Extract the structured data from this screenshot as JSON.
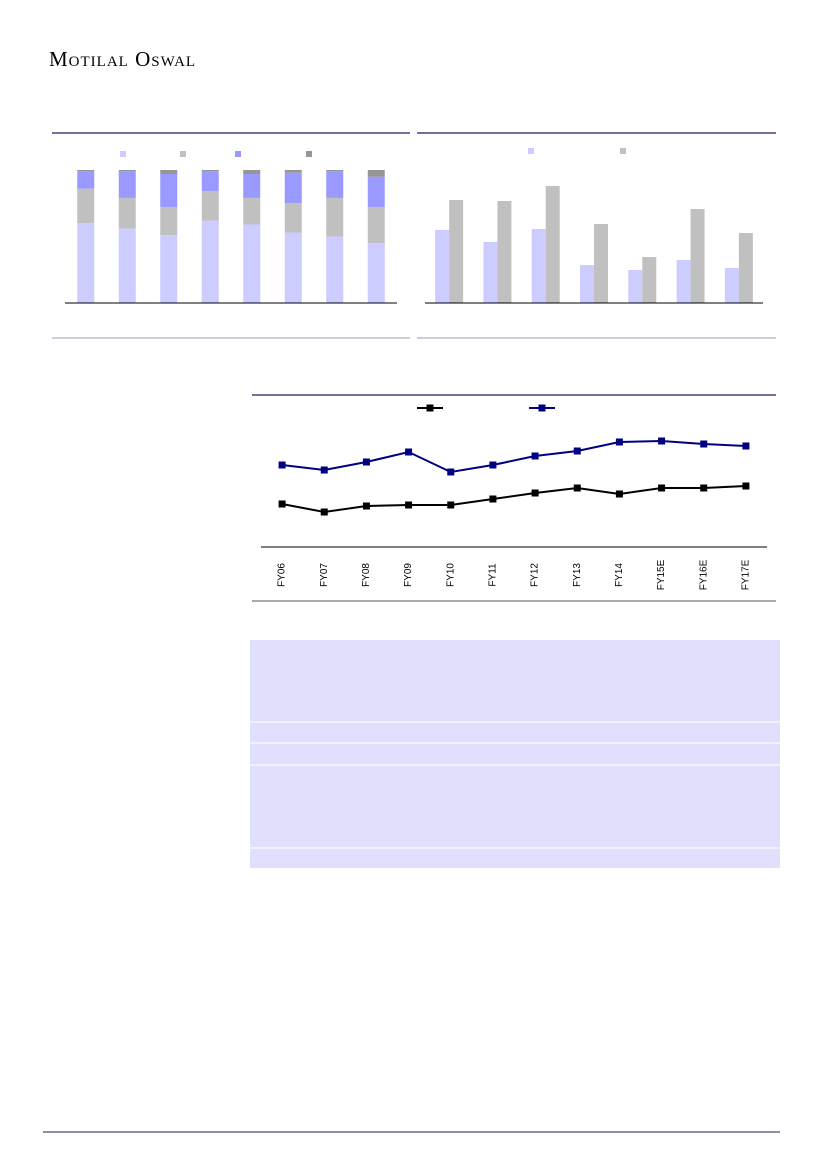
{
  "header": {
    "brand": "Motilal Oswal"
  },
  "chart_data": [
    {
      "type": "stacked-bar",
      "categories": [
        null,
        null,
        null,
        null,
        null,
        null,
        null,
        null
      ],
      "ylim": [
        0,
        100
      ],
      "series": [
        {
          "color": "#ccccff",
          "values": [
            60,
            56,
            51,
            62,
            59,
            53,
            50,
            45
          ]
        },
        {
          "color": "#c0c0c0",
          "values": [
            26,
            23,
            21,
            22,
            20,
            22,
            29,
            27
          ]
        },
        {
          "color": "#9999ff",
          "values": [
            13,
            20,
            25,
            15,
            18,
            23,
            20,
            23
          ]
        },
        {
          "color": "#969696",
          "values": [
            1,
            1,
            3,
            1,
            3,
            2,
            1,
            5
          ]
        }
      ]
    },
    {
      "type": "grouped-bar",
      "categories": [
        null,
        null,
        null,
        null,
        null,
        null,
        null
      ],
      "ylim": [
        0,
        130
      ],
      "series": [
        {
          "color": "#ccccff",
          "values": [
            73,
            61,
            74,
            38,
            33,
            43,
            35
          ]
        },
        {
          "color": "#c0c0c0",
          "values": [
            103,
            102,
            117,
            79,
            46,
            94,
            70
          ]
        }
      ]
    },
    {
      "type": "line",
      "categories": [
        "FY06",
        "FY07",
        "FY08",
        "FY09",
        "FY10",
        "FY11",
        "FY12",
        "FY13",
        "FY14",
        "FY15E",
        "FY16E",
        "FY17E"
      ],
      "ylim": [
        0,
        136
      ],
      "series": [
        {
          "color": "#000000",
          "values": [
            42,
            34,
            40,
            41,
            41,
            47,
            53,
            58,
            52,
            58,
            58,
            60
          ]
        },
        {
          "color": "#000080",
          "values": [
            81,
            76,
            84,
            94,
            74,
            81,
            90,
            95,
            104,
            105,
            102,
            100
          ]
        }
      ]
    }
  ]
}
